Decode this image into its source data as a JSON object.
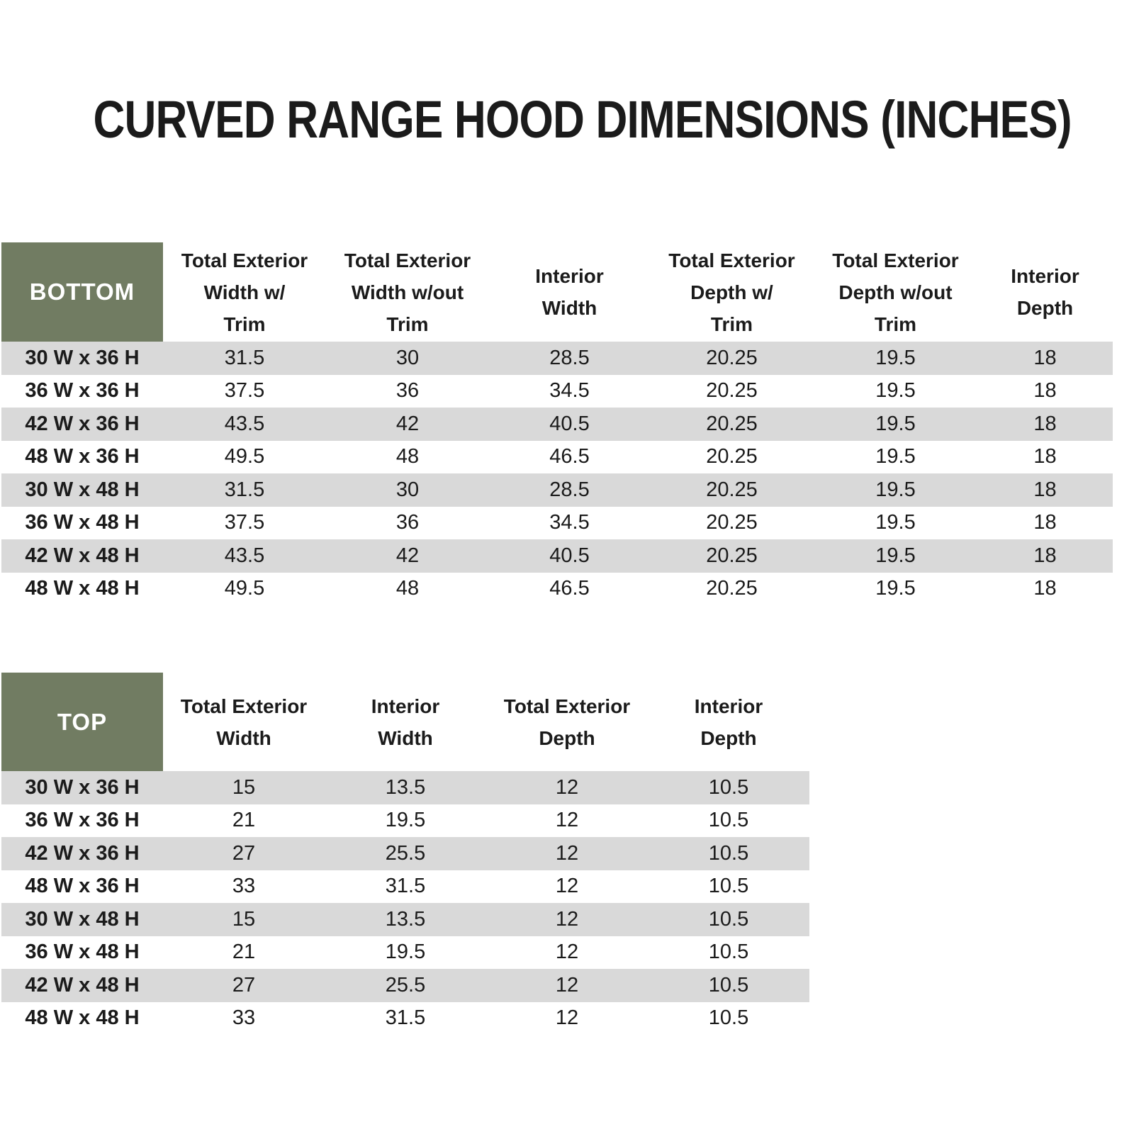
{
  "title": "CURVED RANGE HOOD DIMENSIONS (INCHES)",
  "colors": {
    "header_green": "#717C62",
    "stripe_gray": "#D9D9D9",
    "page_background": "#FFFFFF",
    "text": "#1B1B1B",
    "corner_text": "#FFFFFF"
  },
  "chart_data": [
    {
      "type": "table",
      "name": "bottom-dimensions",
      "corner_label": "BOTTOM",
      "columns": [
        "Total Exterior Width w/ Trim",
        "Total Exterior Width w/out Trim",
        "Interior Width",
        "Total Exterior Depth w/ Trim",
        "Total Exterior Depth w/out Trim",
        "Interior Depth"
      ],
      "columns_display": [
        "Total Exterior\nWidth w/\nTrim",
        "Total Exterior\nWidth w/out\nTrim",
        "Interior\nWidth",
        "Total Exterior\nDepth w/\nTrim",
        "Total Exterior\nDepth w/out\nTrim",
        "Interior\nDepth"
      ],
      "rows": [
        {
          "label": "30 W x 36 H",
          "values": [
            31.5,
            30,
            28.5,
            20.25,
            19.5,
            18
          ]
        },
        {
          "label": "36 W x 36 H",
          "values": [
            37.5,
            36,
            34.5,
            20.25,
            19.5,
            18
          ]
        },
        {
          "label": "42 W x 36 H",
          "values": [
            43.5,
            42,
            40.5,
            20.25,
            19.5,
            18
          ]
        },
        {
          "label": "48 W x 36 H",
          "values": [
            49.5,
            48,
            46.5,
            20.25,
            19.5,
            18
          ]
        },
        {
          "label": "30 W x 48 H",
          "values": [
            31.5,
            30,
            28.5,
            20.25,
            19.5,
            18
          ]
        },
        {
          "label": "36 W x 48 H",
          "values": [
            37.5,
            36,
            34.5,
            20.25,
            19.5,
            18
          ]
        },
        {
          "label": "42 W x 48 H",
          "values": [
            43.5,
            42,
            40.5,
            20.25,
            19.5,
            18
          ]
        },
        {
          "label": "48 W x 48 H",
          "values": [
            49.5,
            48,
            46.5,
            20.25,
            19.5,
            18
          ]
        }
      ]
    },
    {
      "type": "table",
      "name": "top-dimensions",
      "corner_label": "TOP",
      "columns": [
        "Total Exterior Width",
        "Interior Width",
        "Total Exterior Depth",
        "Interior Depth"
      ],
      "columns_display": [
        "Total Exterior\nWidth",
        "Interior\nWidth",
        "Total Exterior\nDepth",
        "Interior\nDepth"
      ],
      "rows": [
        {
          "label": "30 W x 36 H",
          "values": [
            15,
            13.5,
            12,
            10.5
          ]
        },
        {
          "label": "36 W x 36 H",
          "values": [
            21,
            19.5,
            12,
            10.5
          ]
        },
        {
          "label": "42 W x 36 H",
          "values": [
            27,
            25.5,
            12,
            10.5
          ]
        },
        {
          "label": "48 W x 36 H",
          "values": [
            33,
            31.5,
            12,
            10.5
          ]
        },
        {
          "label": "30 W x 48 H",
          "values": [
            15,
            13.5,
            12,
            10.5
          ]
        },
        {
          "label": "36 W x 48 H",
          "values": [
            21,
            19.5,
            12,
            10.5
          ]
        },
        {
          "label": "42 W x 48 H",
          "values": [
            27,
            25.5,
            12,
            10.5
          ]
        },
        {
          "label": "48 W x 48 H",
          "values": [
            33,
            31.5,
            12,
            10.5
          ]
        }
      ]
    }
  ]
}
